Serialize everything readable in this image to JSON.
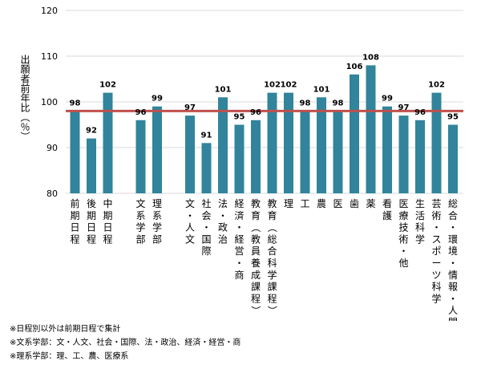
{
  "chart_data": {
    "type": "bar",
    "ylabel": "出願者前年比（％）",
    "ylim": [
      80,
      120
    ],
    "yticks": [
      80,
      90,
      100,
      110,
      120
    ],
    "reference_line": 98,
    "bar_color": "#31849b",
    "line_color": "#c0504d",
    "categories": [
      "前期日程",
      "後期日程",
      "中期日程",
      "文系学部",
      "理系学部",
      "文・人文",
      "社会・国際",
      "法・政治",
      "経済・経営・商",
      "教育（教員養成課程）",
      "教育（総合科学課程）",
      "理",
      "工",
      "農",
      "医",
      "歯",
      "薬",
      "看護",
      "医療技術・他",
      "生活科学",
      "芸術・スポーツ科学",
      "総合・環境・情報・人間"
    ],
    "values": [
      98,
      92,
      102,
      96,
      99,
      97,
      91,
      101,
      95,
      96,
      102,
      102,
      98,
      101,
      98,
      106,
      108,
      99,
      97,
      96,
      102,
      95
    ],
    "data_labels": [
      "98",
      "92",
      "102",
      "96",
      "99",
      "97",
      "91",
      "101",
      "95",
      "96",
      "102",
      "102",
      "98",
      "101",
      "98",
      "106",
      "108",
      "99",
      "97",
      "96",
      "102",
      "95"
    ]
  },
  "notes": [
    "※日程別以外は前期日程で集計",
    "※文系学部：文・人文、社会・国際、法・政治、経済・経営・商",
    "※理系学部：理、工、農、医療系"
  ]
}
